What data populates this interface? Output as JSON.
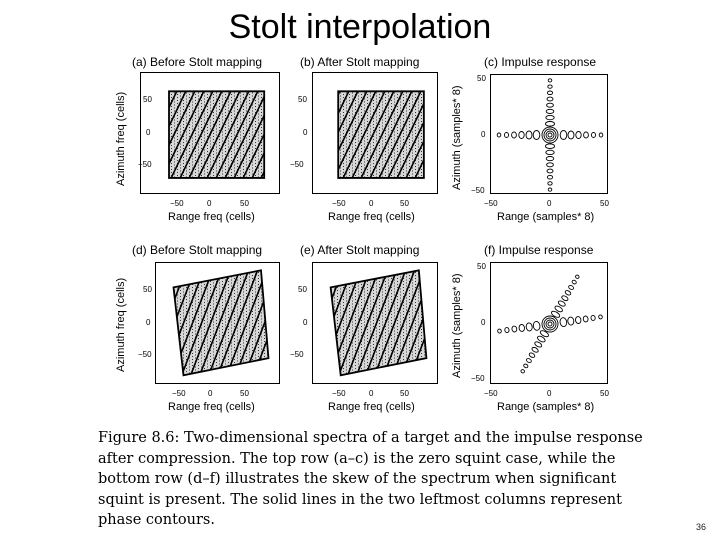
{
  "slide": {
    "title": "Stolt interpolation",
    "page_number": "36"
  },
  "figure": {
    "panels": [
      {
        "id": "a",
        "title": "(a)   Before Stolt mapping",
        "xlabel": "Range freq  (cells)",
        "ylabel": "Azimuth freq  (cells)",
        "xticks": [
          "−50",
          "0",
          "50"
        ],
        "yticks": [
          "50",
          "0",
          "−50"
        ],
        "kind": "spectrum",
        "skew": 0
      },
      {
        "id": "b",
        "title": "(b)   After Stolt mapping",
        "xlabel": "Range freq  (cells)",
        "ylabel": "",
        "xticks": [
          "−50",
          "0",
          "50"
        ],
        "yticks": [
          "50",
          "0",
          "−50"
        ],
        "kind": "spectrum",
        "skew": 0
      },
      {
        "id": "c",
        "title": "(c)   Impulse response",
        "xlabel": "Range   (samples* 8)",
        "ylabel": "Azimuth  (samples* 8)",
        "xticks": [
          "−50",
          "0",
          "50"
        ],
        "yticks": [
          "50",
          "0",
          "−50"
        ],
        "kind": "impulse",
        "skew": 0
      },
      {
        "id": "d",
        "title": "(d)   Before Stolt mapping",
        "xlabel": "Range freq  (cells)",
        "ylabel": "Azimuth freq  (cells)",
        "xticks": [
          "−50",
          "0",
          "50"
        ],
        "yticks": [
          "50",
          "0",
          "−50"
        ],
        "kind": "spectrum",
        "skew": 1
      },
      {
        "id": "e",
        "title": "(e)   After Stolt mapping",
        "xlabel": "Range freq  (cells)",
        "ylabel": "",
        "xticks": [
          "−50",
          "0",
          "50"
        ],
        "yticks": [
          "50",
          "0",
          "−50"
        ],
        "kind": "spectrum",
        "skew": 1
      },
      {
        "id": "f",
        "title": "(f)   Impulse response",
        "xlabel": "Range   (samples* 8)",
        "ylabel": "Azimuth  (samples* 8)",
        "xticks": [
          "−50",
          "0",
          "50"
        ],
        "yticks": [
          "50",
          "0",
          "−50"
        ],
        "kind": "impulse",
        "skew": 1
      }
    ]
  },
  "caption": {
    "text": "Figure 8.6: Two-dimensional spectra of a target and the impulse response after compression. The top row (a–c) is the zero squint case, while the bottom row (d–f) illustrates the skew of the spectrum when significant squint is present. The solid lines in the two leftmost columns represent phase contours."
  }
}
